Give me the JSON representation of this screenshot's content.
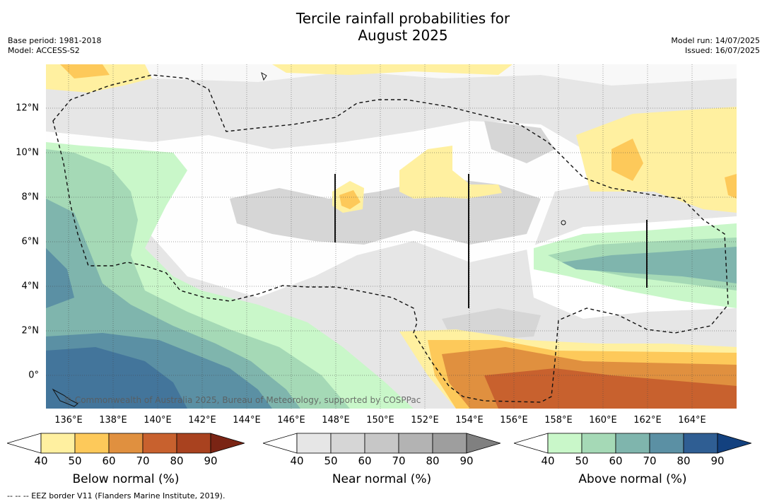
{
  "title": {
    "line1": "Tercile rainfall probabilities for",
    "line2": "August 2025"
  },
  "meta_left": {
    "base_period": "Base period: 1981-2018",
    "model": "Model: ACCESS-S2"
  },
  "meta_right": {
    "model_run": "Model run: 14/07/2025",
    "issued": "Issued: 16/07/2025"
  },
  "map": {
    "lon_labels": [
      "136°E",
      "138°E",
      "140°E",
      "142°E",
      "144°E",
      "146°E",
      "148°E",
      "150°E",
      "152°E",
      "154°E",
      "156°E",
      "158°E",
      "160°E",
      "162°E",
      "164°E"
    ],
    "lat_labels": [
      "12°N",
      "10°N",
      "8°N",
      "6°N",
      "4°N",
      "2°N",
      "0°"
    ],
    "copyright": "© Commonwealth of Australia 2025, Bureau of Meteorology, supported by COSPPac"
  },
  "colorbars": [
    {
      "name": "below",
      "title": "Below normal (%)",
      "ticks": [
        "40",
        "50",
        "60",
        "70",
        "80",
        "90"
      ],
      "colors": [
        "#fff0a0",
        "#fdc95a",
        "#e0903f",
        "#c8612e",
        "#a9421f",
        "#7a2414"
      ]
    },
    {
      "name": "near",
      "title": "Near normal (%)",
      "ticks": [
        "40",
        "50",
        "60",
        "70",
        "80",
        "90"
      ],
      "colors": [
        "#e6e6e6",
        "#d6d6d6",
        "#c7c7c7",
        "#b3b3b3",
        "#9e9e9e",
        "#808080"
      ]
    },
    {
      "name": "above",
      "title": "Above normal (%)",
      "ticks": [
        "40",
        "50",
        "60",
        "70",
        "80",
        "90"
      ],
      "colors": [
        "#c9f7c9",
        "#a5d9b6",
        "#7fb5ad",
        "#5b90a4",
        "#2f5e93",
        "#13417f"
      ]
    }
  ],
  "footnote": "--  --  -- EEZ border V11 (Flanders Marine Institute, 2019)."
}
